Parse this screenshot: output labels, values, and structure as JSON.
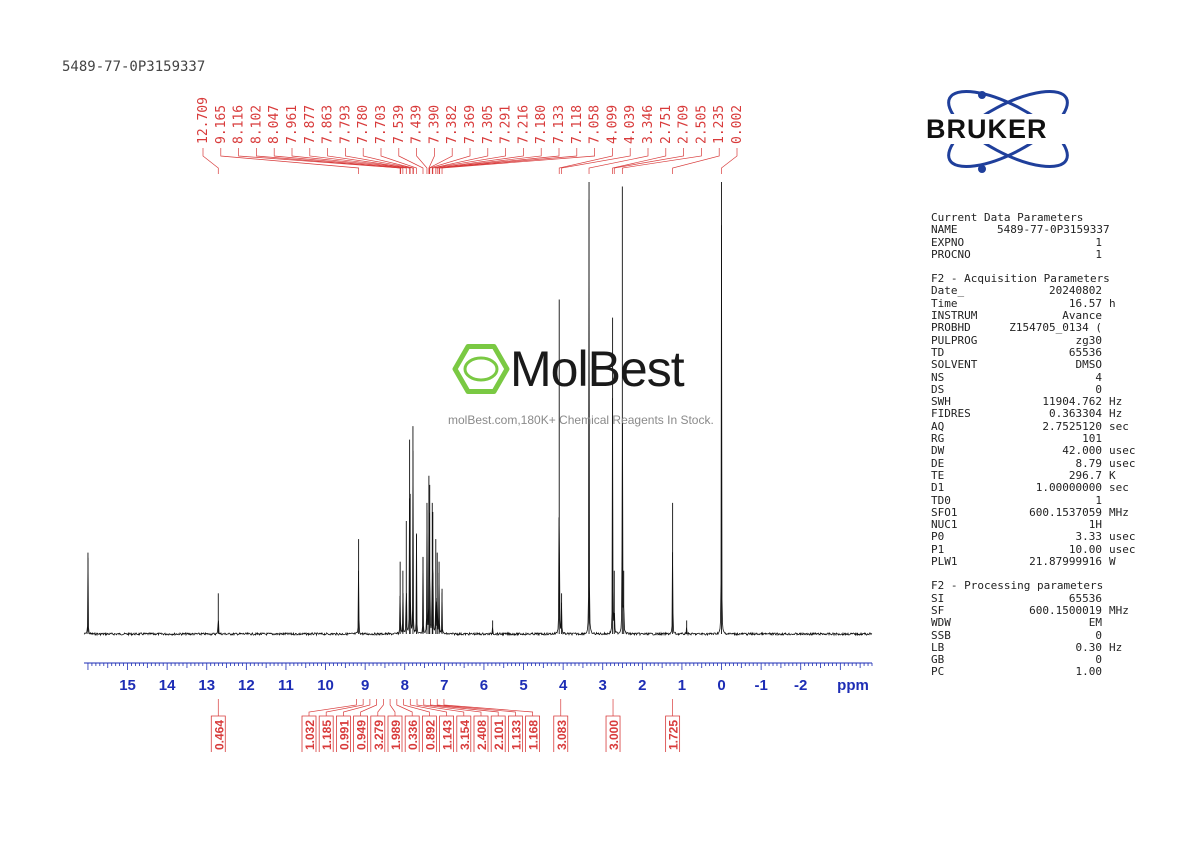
{
  "sample_name": "5489-77-0P3159337",
  "watermark": {
    "brand": "MolBest",
    "tagline": "molBest.com,180K+ Chemical Reagents In Stock."
  },
  "logo": {
    "text": "BRUKER",
    "color": "#1f3f9b"
  },
  "colors": {
    "peak_label": "#d83b3b",
    "axis": "#1d2db5",
    "spectrum": "#111111"
  },
  "params": [
    {
      "heading": "Current Data Parameters",
      "rows": [
        {
          "k": "NAME",
          "v": "5489-77-0P3159337",
          "u": ""
        },
        {
          "k": "EXPNO",
          "v": "1",
          "u": ""
        },
        {
          "k": "PROCNO",
          "v": "1",
          "u": ""
        }
      ]
    },
    {
      "heading": "F2 - Acquisition Parameters",
      "rows": [
        {
          "k": "Date_",
          "v": "20240802",
          "u": ""
        },
        {
          "k": "Time",
          "v": "16.57",
          "u": "h"
        },
        {
          "k": "INSTRUM",
          "v": "Avance",
          "u": ""
        },
        {
          "k": "PROBHD",
          "v": "Z154705_0134 (",
          "u": ""
        },
        {
          "k": "PULPROG",
          "v": "zg30",
          "u": ""
        },
        {
          "k": "TD",
          "v": "65536",
          "u": ""
        },
        {
          "k": "SOLVENT",
          "v": "DMSO",
          "u": ""
        },
        {
          "k": "NS",
          "v": "4",
          "u": ""
        },
        {
          "k": "DS",
          "v": "0",
          "u": ""
        },
        {
          "k": "SWH",
          "v": "11904.762",
          "u": "Hz"
        },
        {
          "k": "FIDRES",
          "v": "0.363304",
          "u": "Hz"
        },
        {
          "k": "AQ",
          "v": "2.7525120",
          "u": "sec"
        },
        {
          "k": "RG",
          "v": "101",
          "u": ""
        },
        {
          "k": "DW",
          "v": "42.000",
          "u": "usec"
        },
        {
          "k": "DE",
          "v": "8.79",
          "u": "usec"
        },
        {
          "k": "TE",
          "v": "296.7",
          "u": "K"
        },
        {
          "k": "D1",
          "v": "1.00000000",
          "u": "sec"
        },
        {
          "k": "TD0",
          "v": "1",
          "u": ""
        },
        {
          "k": "SFO1",
          "v": "600.1537059",
          "u": "MHz"
        },
        {
          "k": "NUC1",
          "v": "1H",
          "u": ""
        },
        {
          "k": "P0",
          "v": "3.33",
          "u": "usec"
        },
        {
          "k": "P1",
          "v": "10.00",
          "u": "usec"
        },
        {
          "k": "PLW1",
          "v": "21.87999916",
          "u": "W"
        }
      ]
    },
    {
      "heading": "F2 - Processing parameters",
      "rows": [
        {
          "k": "SI",
          "v": "65536",
          "u": ""
        },
        {
          "k": "SF",
          "v": "600.1500019",
          "u": "MHz"
        },
        {
          "k": "WDW",
          "v": "EM",
          "u": ""
        },
        {
          "k": "SSB",
          "v": "0",
          "u": ""
        },
        {
          "k": "LB",
          "v": "0.30",
          "u": "Hz"
        },
        {
          "k": "GB",
          "v": "0",
          "u": ""
        },
        {
          "k": "PC",
          "v": "1.00",
          "u": ""
        }
      ]
    }
  ],
  "chart_data": {
    "type": "line",
    "xlabel": "ppm",
    "xlim": [
      16.1,
      -3.8
    ],
    "x_reversed": true,
    "xticks": [
      15,
      14,
      13,
      12,
      11,
      10,
      9,
      8,
      7,
      6,
      5,
      4,
      3,
      2,
      1,
      0,
      -1,
      -2
    ],
    "xtick_labels": [
      "15",
      "14",
      "13",
      "12",
      "11",
      "10",
      "9",
      "8",
      "7",
      "6",
      "5",
      "4",
      "3",
      "2",
      "1",
      "0",
      "-1",
      "-2"
    ],
    "peak_labels": [
      "12.709",
      "9.165",
      "8.116",
      "8.102",
      "8.047",
      "7.961",
      "7.877",
      "7.863",
      "7.793",
      "7.780",
      "7.703",
      "7.539",
      "7.439",
      "7.390",
      "7.382",
      "7.369",
      "7.305",
      "7.291",
      "7.216",
      "7.180",
      "7.133",
      "7.118",
      "7.058",
      "4.099",
      "4.039",
      "3.346",
      "2.751",
      "2.709",
      "2.505",
      "1.235",
      "0.002"
    ],
    "peaks": [
      {
        "ppm": 16.0,
        "h": 0.18
      },
      {
        "ppm": 12.709,
        "h": 0.09
      },
      {
        "ppm": 9.165,
        "h": 0.21
      },
      {
        "ppm": 8.116,
        "h": 0.16
      },
      {
        "ppm": 8.047,
        "h": 0.14
      },
      {
        "ppm": 7.961,
        "h": 0.25
      },
      {
        "ppm": 7.877,
        "h": 0.43
      },
      {
        "ppm": 7.863,
        "h": 0.31
      },
      {
        "ppm": 7.793,
        "h": 0.46
      },
      {
        "ppm": 7.703,
        "h": 0.22
      },
      {
        "ppm": 7.539,
        "h": 0.17
      },
      {
        "ppm": 7.439,
        "h": 0.29
      },
      {
        "ppm": 7.39,
        "h": 0.35
      },
      {
        "ppm": 7.369,
        "h": 0.33
      },
      {
        "ppm": 7.305,
        "h": 0.29
      },
      {
        "ppm": 7.291,
        "h": 0.27
      },
      {
        "ppm": 7.216,
        "h": 0.21
      },
      {
        "ppm": 7.18,
        "h": 0.18
      },
      {
        "ppm": 7.133,
        "h": 0.16
      },
      {
        "ppm": 7.058,
        "h": 0.1
      },
      {
        "ppm": 5.78,
        "h": 0.03
      },
      {
        "ppm": 4.099,
        "h": 0.74
      },
      {
        "ppm": 4.039,
        "h": 0.09
      },
      {
        "ppm": 3.346,
        "h": 1.0
      },
      {
        "ppm": 2.751,
        "h": 0.7
      },
      {
        "ppm": 2.709,
        "h": 0.14
      },
      {
        "ppm": 2.505,
        "h": 0.99
      },
      {
        "ppm": 2.47,
        "h": 0.14
      },
      {
        "ppm": 1.235,
        "h": 0.29
      },
      {
        "ppm": 0.88,
        "h": 0.03
      },
      {
        "ppm": 0.002,
        "h": 1.0
      }
    ],
    "integrals": [
      {
        "x": 12.709,
        "value": "0.464"
      },
      {
        "x": 9.22,
        "value": "1.032"
      },
      {
        "x": 9.05,
        "value": "1.185"
      },
      {
        "x": 8.88,
        "value": "0.991"
      },
      {
        "x": 8.71,
        "value": "0.949"
      },
      {
        "x": 8.54,
        "value": "3.279"
      },
      {
        "x": 8.37,
        "value": "1.989"
      },
      {
        "x": 8.2,
        "value": "0.336"
      },
      {
        "x": 8.03,
        "value": "0.892"
      },
      {
        "x": 7.86,
        "value": "1.143"
      },
      {
        "x": 7.69,
        "value": "3.154"
      },
      {
        "x": 7.52,
        "value": "2.408"
      },
      {
        "x": 7.35,
        "value": "2.101"
      },
      {
        "x": 7.18,
        "value": "1.133"
      },
      {
        "x": 7.01,
        "value": "1.168"
      },
      {
        "x": 4.06,
        "value": "3.083"
      },
      {
        "x": 2.74,
        "value": "3.000"
      },
      {
        "x": 1.235,
        "value": "1.725"
      }
    ]
  }
}
